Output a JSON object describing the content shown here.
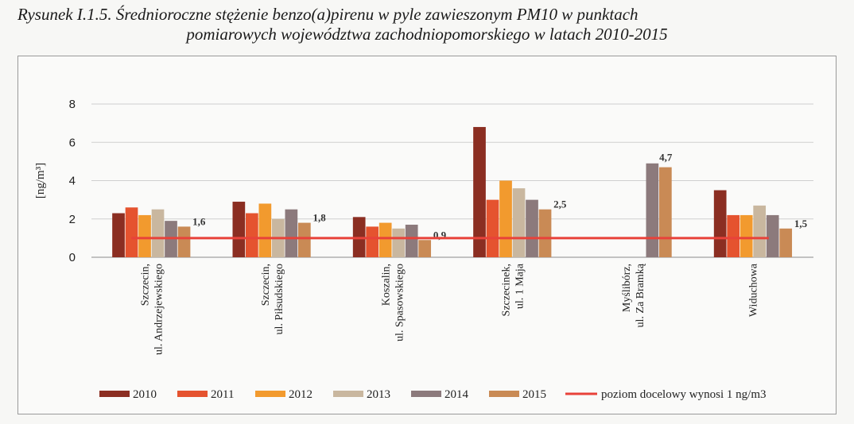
{
  "caption": {
    "line1": "Rysunek I.1.5. Średnioroczne stężenie benzo(a)pirenu w pyle zawieszonym PM10 w punktach",
    "line2": "pomiarowych województwa zachodniopomorskiego w latach 2010-2015"
  },
  "chart_data": {
    "type": "bar",
    "ylabel": "[ng/m³]",
    "ylim": [
      0,
      8
    ],
    "yticks": [
      "0",
      "2",
      "4",
      "6",
      "8"
    ],
    "grid": true,
    "legend_position": "bottom",
    "categories": [
      [
        "Szczecin,",
        "ul. Andrzejewskiego"
      ],
      [
        "Szczecin,",
        "ul. Piłsudskiego"
      ],
      [
        "Koszalin,",
        "ul. Spasowskiego"
      ],
      [
        "Szczecinek,",
        "ul. 1 Maja"
      ],
      [
        "Myślibórz,",
        "ul. Za Bramką"
      ],
      [
        "Widuchowa"
      ]
    ],
    "series": [
      {
        "name": "2010",
        "color": "#8b2e22",
        "values": [
          2.3,
          2.9,
          2.1,
          6.8,
          null,
          3.5
        ]
      },
      {
        "name": "2011",
        "color": "#e5532f",
        "values": [
          2.6,
          2.3,
          1.6,
          3.0,
          null,
          2.2
        ]
      },
      {
        "name": "2012",
        "color": "#f29a2e",
        "values": [
          2.2,
          2.8,
          1.8,
          4.0,
          null,
          2.2
        ]
      },
      {
        "name": "2013",
        "color": "#c9b79f",
        "values": [
          2.5,
          2.0,
          1.5,
          3.6,
          null,
          2.7
        ]
      },
      {
        "name": "2014",
        "color": "#8c7a7c",
        "values": [
          1.9,
          2.5,
          1.7,
          3.0,
          4.9,
          2.2
        ]
      },
      {
        "name": "2015",
        "color": "#c98a55",
        "values": [
          1.6,
          1.8,
          0.9,
          2.5,
          4.7,
          1.5
        ]
      }
    ],
    "data_labels": [
      "1,6",
      "1,8",
      "0,9",
      "2,5",
      "4,7",
      "1,5"
    ],
    "target_line": {
      "name": "poziom docelowy wynosi 1 ng/m3",
      "value": 1,
      "color": "#e8423a"
    }
  }
}
